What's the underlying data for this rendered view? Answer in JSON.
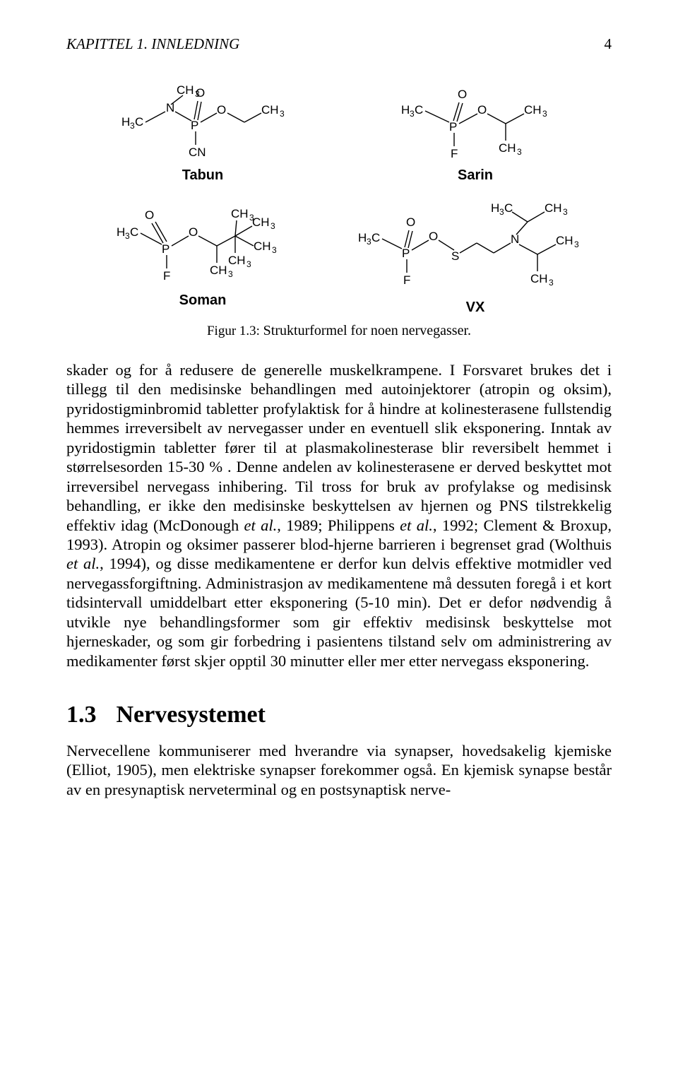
{
  "running_head": {
    "chapter": "KAPITTEL 1.",
    "title": "INNLEDNING",
    "page_number": "4"
  },
  "figure": {
    "molecules": {
      "tabun": {
        "label": "Tabun"
      },
      "sarin": {
        "label": "Sarin"
      },
      "soman": {
        "label": "Soman"
      },
      "vx": {
        "label": "VX"
      }
    },
    "caption_label": "Figur 1.3:",
    "caption_text": "Strukturformel for noen nervegasser."
  },
  "body_paragraph": "skader og for å redusere de generelle muskelkrampene. I Forsvaret brukes det i tillegg til den medisinske behandlingen med autoinjektorer (atropin og oksim), pyridostigminbromid tabletter profylaktisk for å hindre at kolinesterasene fullstendig hemmes irreversibelt av nervegasser under en eventuell slik eksponering. Inntak av pyridostigmin tabletter fører til at plasmakolinesterase blir reversibelt hemmet i størrelsesorden 15-30 % . Denne andelen av kolinesterasene er derved beskyttet mot irreversibel nervegass inhibering. Til tross for bruk av profylakse og medisinsk behandling, er ikke den medisinske beskyttelsen av hjernen og PNS tilstrekkelig effektiv idag (McDonough et al., 1989; Philippens et al., 1992; Clement & Broxup, 1993). Atropin og oksimer passerer blod-hjerne barrieren i begrenset grad (Wolthuis et al., 1994), og disse medikamentene er derfor kun delvis effektive motmidler ved nervegassforgiftning. Administrasjon av medikamentene må dessuten foregå i et kort tidsintervall umiddelbart etter eksponering (5-10 min). Det er defor nødvendig å utvikle nye behandlingsformer som gir effektiv medisinsk beskyttelse mot hjerneskader, og som gir forbedring i pasientens tilstand selv om administrering av medikamenter først skjer opptil 30 minutter eller mer etter nervegass eksponering.",
  "section": {
    "number": "1.3",
    "title": "Nervesystemet"
  },
  "section_paragraph": "Nervecellene kommuniserer med hverandre via synapser, hovedsakelig kjemiske (Elliot, 1905), men elektriske synapser forekommer også. En kjemisk synapse består av en presynaptisk nerveterminal og en postsynaptisk nerve-",
  "chem_labels": {
    "H3C": "H",
    "sub3": "3",
    "C": "C",
    "CH3": "CH",
    "O": "O",
    "N": "N",
    "P": "P",
    "F": "F",
    "S": "S",
    "CN": "CN"
  }
}
